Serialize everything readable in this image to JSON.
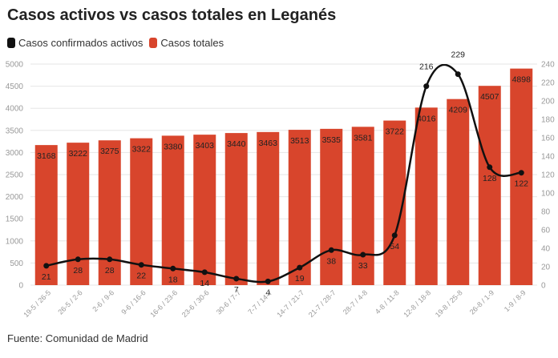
{
  "title": "Casos activos vs casos totales en Leganés",
  "source": "Fuente: Comunidad de Madrid",
  "colors": {
    "bars": "#d8452c",
    "line": "#111111",
    "grid": "#e6e6e6"
  },
  "chart_data": {
    "type": "bar",
    "categories": [
      "19-5 / 26-5",
      "26-5 / 2-6",
      "2-6 / 9-6",
      "9-6 / 16-6",
      "16-6 / 23-6",
      "23-6 / 30-6",
      "30-6 / 7-7",
      "7-7 / 14-7",
      "14-7 / 21-7",
      "21-7 / 28-7",
      "28-7 / 4-8",
      "4-8 / 11-8",
      "12-8 / 18-8",
      "19-8 / 25-8",
      "26-8 / 1-9",
      "1-9 / 8-9"
    ],
    "series": [
      {
        "name": "Casos confirmados activos",
        "type": "line",
        "axis": "right",
        "values": [
          21,
          28,
          28,
          22,
          18,
          14,
          7,
          4,
          19,
          38,
          33,
          54,
          216,
          229,
          128,
          122
        ]
      },
      {
        "name": "Casos totales",
        "type": "bar",
        "axis": "left",
        "values": [
          3168,
          3222,
          3275,
          3322,
          3380,
          3403,
          3440,
          3463,
          3513,
          3535,
          3581,
          3722,
          4016,
          4209,
          4507,
          4898
        ]
      }
    ],
    "y_left": {
      "min": 0,
      "max": 5000,
      "ticks": [
        0,
        500,
        1000,
        1500,
        2000,
        2500,
        3000,
        3500,
        4000,
        4500,
        5000
      ]
    },
    "y_right": {
      "min": 0,
      "max": 240,
      "ticks": [
        0,
        20,
        40,
        60,
        80,
        100,
        120,
        140,
        160,
        180,
        200,
        220,
        240
      ]
    },
    "legend_position": "top-left",
    "grid": true
  }
}
